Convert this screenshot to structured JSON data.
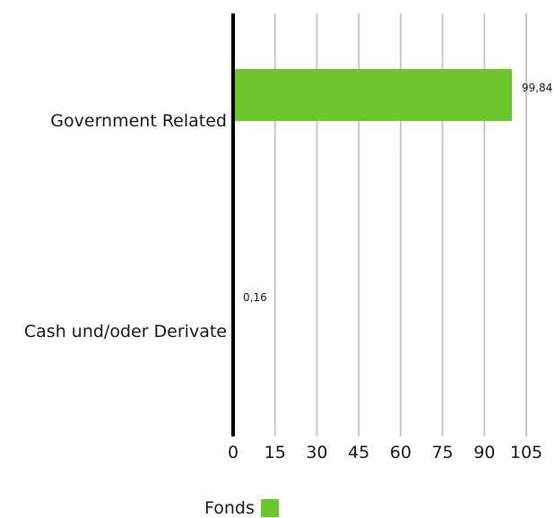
{
  "chart_data": {
    "type": "bar",
    "orientation": "horizontal",
    "categories": [
      "Government Related",
      "Cash und/oder Derivate"
    ],
    "series": [
      {
        "name": "Fonds",
        "values": [
          99.84,
          0.16
        ]
      }
    ],
    "data_labels": [
      "99,84",
      "0,16"
    ],
    "xlim": [
      0,
      105
    ],
    "x_ticks": [
      "0",
      "15",
      "30",
      "45",
      "60",
      "75",
      "90",
      "105"
    ],
    "grid": "vertical",
    "legend_position": "bottom",
    "colors": {
      "bar": "#6cc72e",
      "grid": "#c8c8c8",
      "axis": "#000000",
      "text": "#1a1a1a"
    }
  },
  "legend": {
    "label": "Fonds"
  }
}
